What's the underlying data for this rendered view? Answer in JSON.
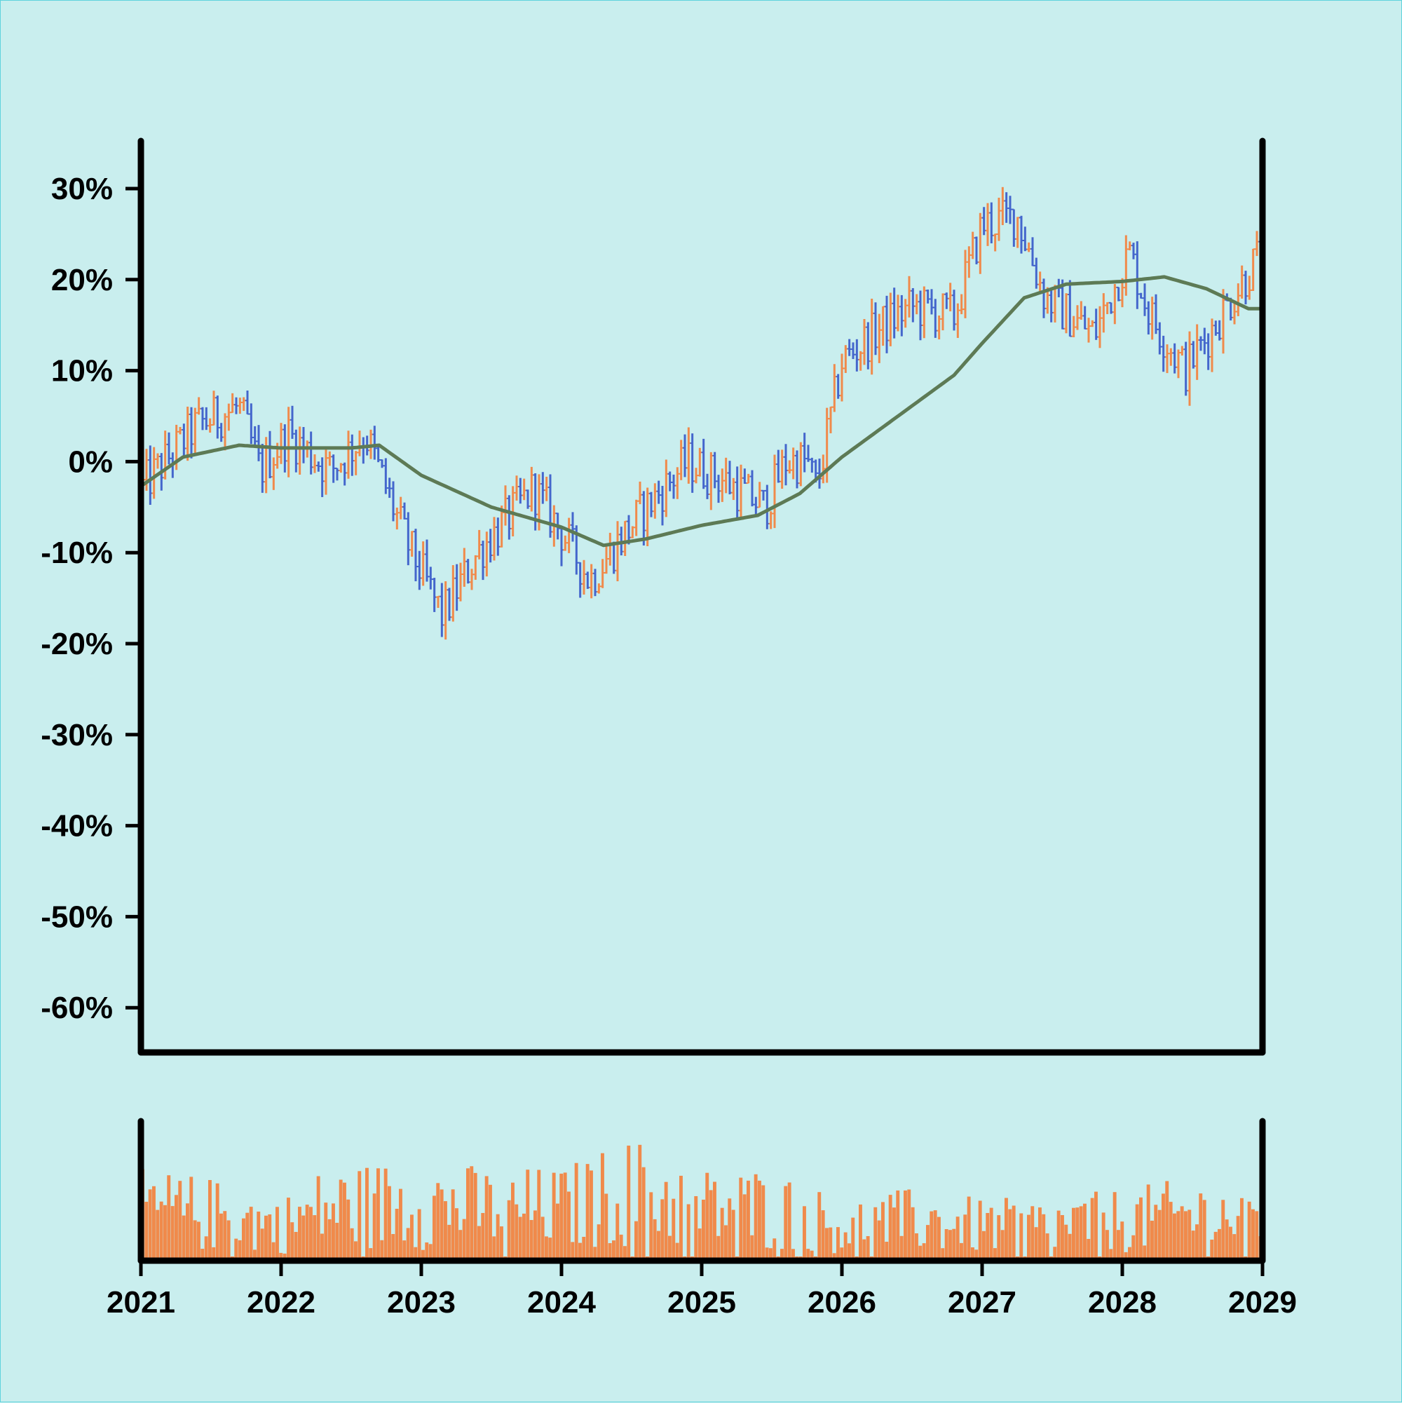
{
  "chart_data": [
    {
      "type": "ohlc",
      "title": "",
      "xlabel": "",
      "ylabel": "",
      "y_unit": "%",
      "ylim": [
        -65,
        35
      ],
      "xlim": [
        2021.0,
        2029.0
      ],
      "yticks": [
        30,
        20,
        10,
        0,
        -10,
        -20,
        -30,
        -40,
        -50,
        -60
      ],
      "ytick_labels": [
        "30%",
        "20%",
        "10%",
        "0%",
        "-10%",
        "-20%",
        "-30%",
        "-40%",
        "-50%",
        "-60%"
      ],
      "grid": false,
      "up_color": "#f08a4b",
      "down_color": "#4466cc",
      "trend_anchors": {
        "x": [
          2021.0,
          2021.3,
          2021.7,
          2022.0,
          2022.5,
          2022.7,
          2023.0,
          2023.5,
          2024.0,
          2024.3,
          2024.6,
          2025.0,
          2025.4,
          2025.7,
          2026.0,
          2026.4,
          2026.8,
          2027.0,
          2027.3,
          2027.6,
          2028.0,
          2028.3,
          2028.6,
          2028.9,
          2029.0
        ],
        "y": [
          -2.7,
          0.5,
          1.8,
          1.5,
          1.5,
          1.8,
          -1.5,
          -5.0,
          -7.2,
          -9.2,
          -8.5,
          -7.0,
          -5.9,
          -3.5,
          0.5,
          5.0,
          9.5,
          13.0,
          18.0,
          19.5,
          19.8,
          20.3,
          19.0,
          16.8,
          16.8
        ]
      },
      "price_anchors": {
        "x": [
          2021.0,
          2021.4,
          2021.7,
          2021.85,
          2022.05,
          2022.35,
          2022.6,
          2022.9,
          2023.15,
          2023.4,
          2023.8,
          2024.05,
          2024.2,
          2024.55,
          2024.9,
          2025.15,
          2025.45,
          2025.6,
          2025.75,
          2025.82,
          2026.0,
          2026.3,
          2026.5,
          2026.8,
          2027.0,
          2027.25,
          2027.45,
          2027.8,
          2028.05,
          2028.2,
          2028.45,
          2028.7,
          2028.95,
          2029.0
        ],
        "y": [
          -3,
          4,
          6,
          -1,
          3,
          -1,
          3,
          -9,
          -17,
          -10,
          -3,
          -9,
          -13,
          -6,
          0,
          -2,
          -5,
          0,
          0,
          -3,
          11,
          15,
          17,
          16,
          26,
          27,
          18,
          14,
          23,
          16,
          10,
          16,
          22,
          23
        ]
      },
      "series": [
        {
          "name": "",
          "type": "ohlc",
          "color": "#f08a4b",
          "color_down": "#4466cc"
        },
        {
          "name": "",
          "type": "line",
          "color": "#5d7a55"
        }
      ]
    },
    {
      "type": "bar",
      "title": "",
      "xlabel": "",
      "ylabel": "",
      "xlim": [
        2021.0,
        2029.0
      ],
      "xticks": [
        2021,
        2022,
        2023,
        2024,
        2025,
        2026,
        2027,
        2028,
        2029
      ],
      "xtick_labels": [
        "2021",
        "2022",
        "2023",
        "2024",
        "2025",
        "2026",
        "2027",
        "2028",
        "2029"
      ],
      "bar_color": "#f08a4b",
      "volume_anchors": {
        "x": [
          2021.0,
          2021.5,
          2022.0,
          2022.3,
          2023.0,
          2023.5,
          2024.0,
          2024.5,
          2025.0,
          2025.5,
          2026.0,
          2026.5,
          2027.0,
          2027.5,
          2028.0,
          2028.5,
          2029.0
        ],
        "y": [
          0.45,
          0.4,
          0.3,
          0.45,
          0.5,
          0.45,
          0.45,
          0.6,
          0.45,
          0.45,
          0.3,
          0.35,
          0.3,
          0.3,
          0.35,
          0.4,
          0.35
        ]
      }
    }
  ]
}
